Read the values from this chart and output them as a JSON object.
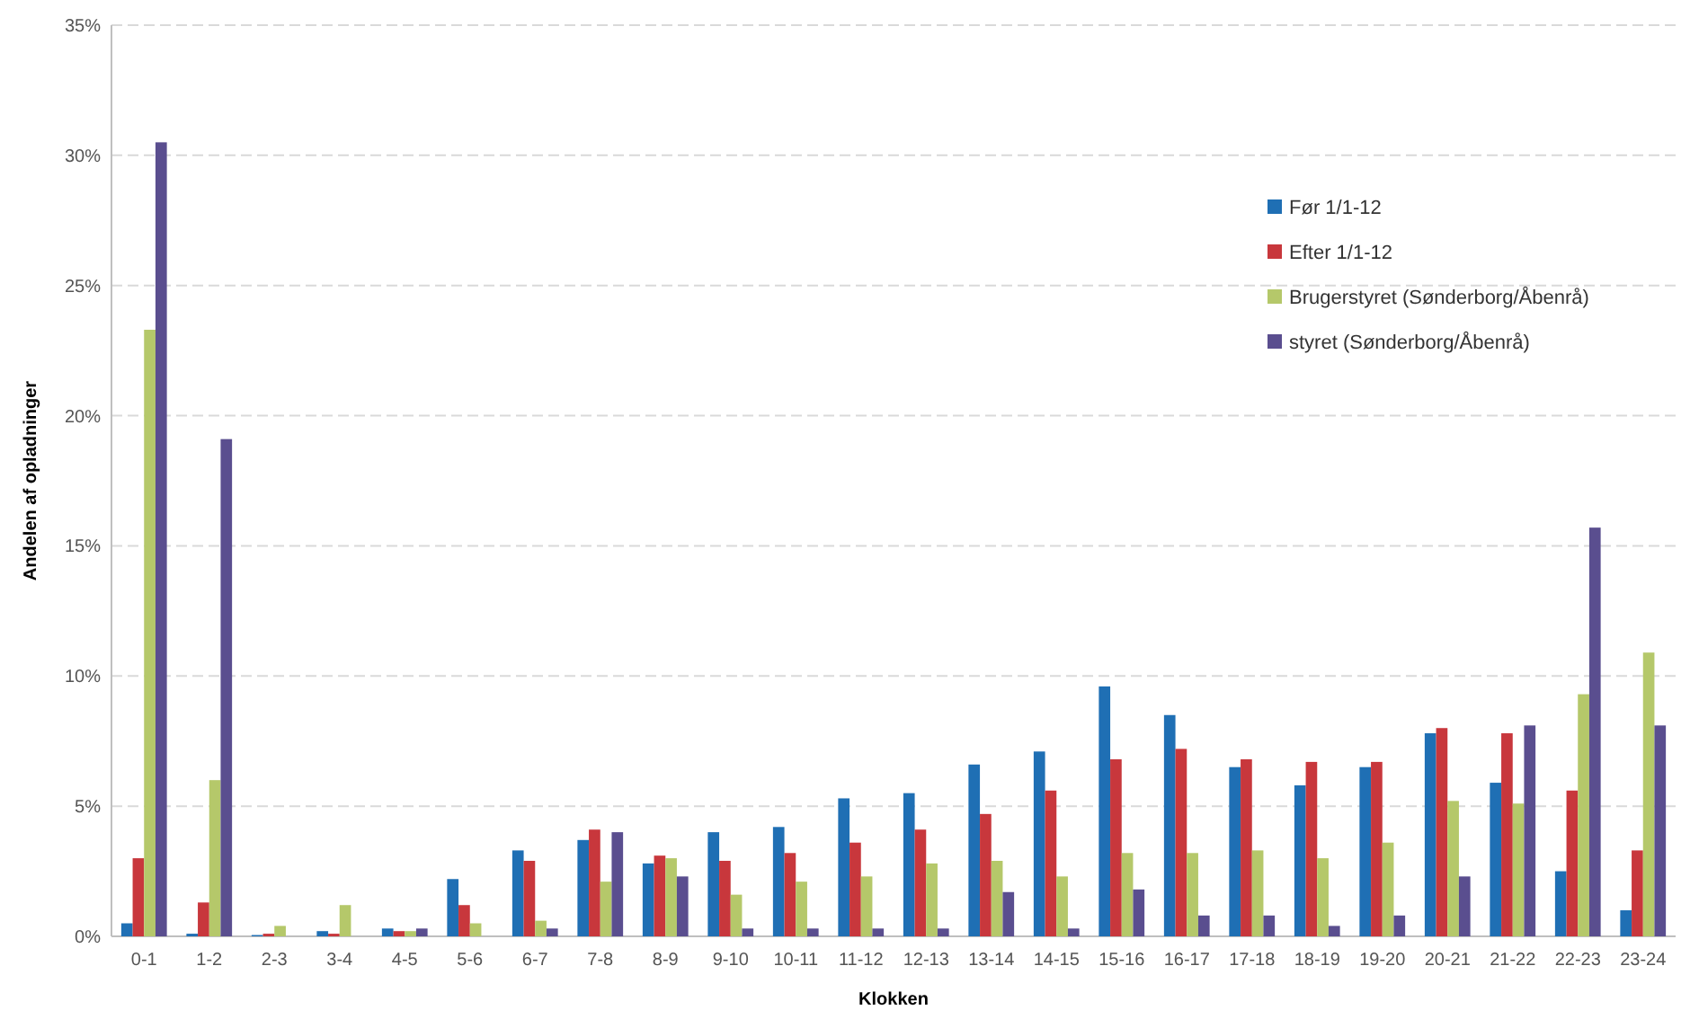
{
  "chart_data": {
    "type": "bar",
    "xlabel": "Klokken",
    "ylabel": "Andelen af opladninger",
    "categories": [
      "0-1",
      "1-2",
      "2-3",
      "3-4",
      "4-5",
      "5-6",
      "6-7",
      "7-8",
      "8-9",
      "9-10",
      "10-11",
      "11-12",
      "12-13",
      "13-14",
      "14-15",
      "15-16",
      "16-17",
      "17-18",
      "18-19",
      "19-20",
      "20-21",
      "21-22",
      "22-23",
      "23-24"
    ],
    "series": [
      {
        "name": "Før 1/1-12",
        "color": "#1f6fb4",
        "values": [
          0.5,
          0.1,
          0.05,
          0.2,
          0.3,
          2.2,
          3.3,
          3.7,
          2.8,
          4.0,
          4.2,
          5.3,
          5.5,
          6.6,
          7.1,
          9.6,
          8.5,
          6.5,
          5.8,
          6.5,
          7.8,
          5.9,
          2.5,
          1.0
        ]
      },
      {
        "name": "Efter 1/1-12",
        "color": "#c8373c",
        "values": [
          3.0,
          1.3,
          0.1,
          0.1,
          0.2,
          1.2,
          2.9,
          4.1,
          3.1,
          2.9,
          3.2,
          3.6,
          4.1,
          4.7,
          5.6,
          6.8,
          7.2,
          6.8,
          6.7,
          6.7,
          8.0,
          7.8,
          5.6,
          3.3
        ]
      },
      {
        "name": "Brugerstyret (Sønderborg/Åbenrå)",
        "color": "#b5c86a",
        "values": [
          23.3,
          6.0,
          0.4,
          1.2,
          0.2,
          0.5,
          0.6,
          2.1,
          3.0,
          1.6,
          2.1,
          2.3,
          2.8,
          2.9,
          2.3,
          3.2,
          3.2,
          3.3,
          3.0,
          3.6,
          5.2,
          5.1,
          9.3,
          10.9
        ]
      },
      {
        "name": "styret (Sønderborg/Åbenrå)",
        "color": "#5a4e8f",
        "values": [
          30.5,
          19.1,
          0,
          0,
          0.3,
          0,
          0.3,
          4.0,
          2.3,
          0.3,
          0.3,
          0.3,
          0.3,
          1.7,
          0.3,
          1.8,
          0.8,
          0.8,
          0.4,
          0.8,
          2.3,
          8.1,
          15.7,
          8.1
        ]
      }
    ],
    "ylim": [
      0,
      35
    ],
    "yticks": [
      {
        "value": 0,
        "label": "0%"
      },
      {
        "value": 5,
        "label": "5%"
      },
      {
        "value": 10,
        "label": "10%"
      },
      {
        "value": 15,
        "label": "15%"
      },
      {
        "value": 20,
        "label": "20%"
      },
      {
        "value": 25,
        "label": "25%"
      },
      {
        "value": 30,
        "label": "30%"
      },
      {
        "value": 35,
        "label": "35%"
      }
    ],
    "grid": "y",
    "legend": "top right"
  }
}
